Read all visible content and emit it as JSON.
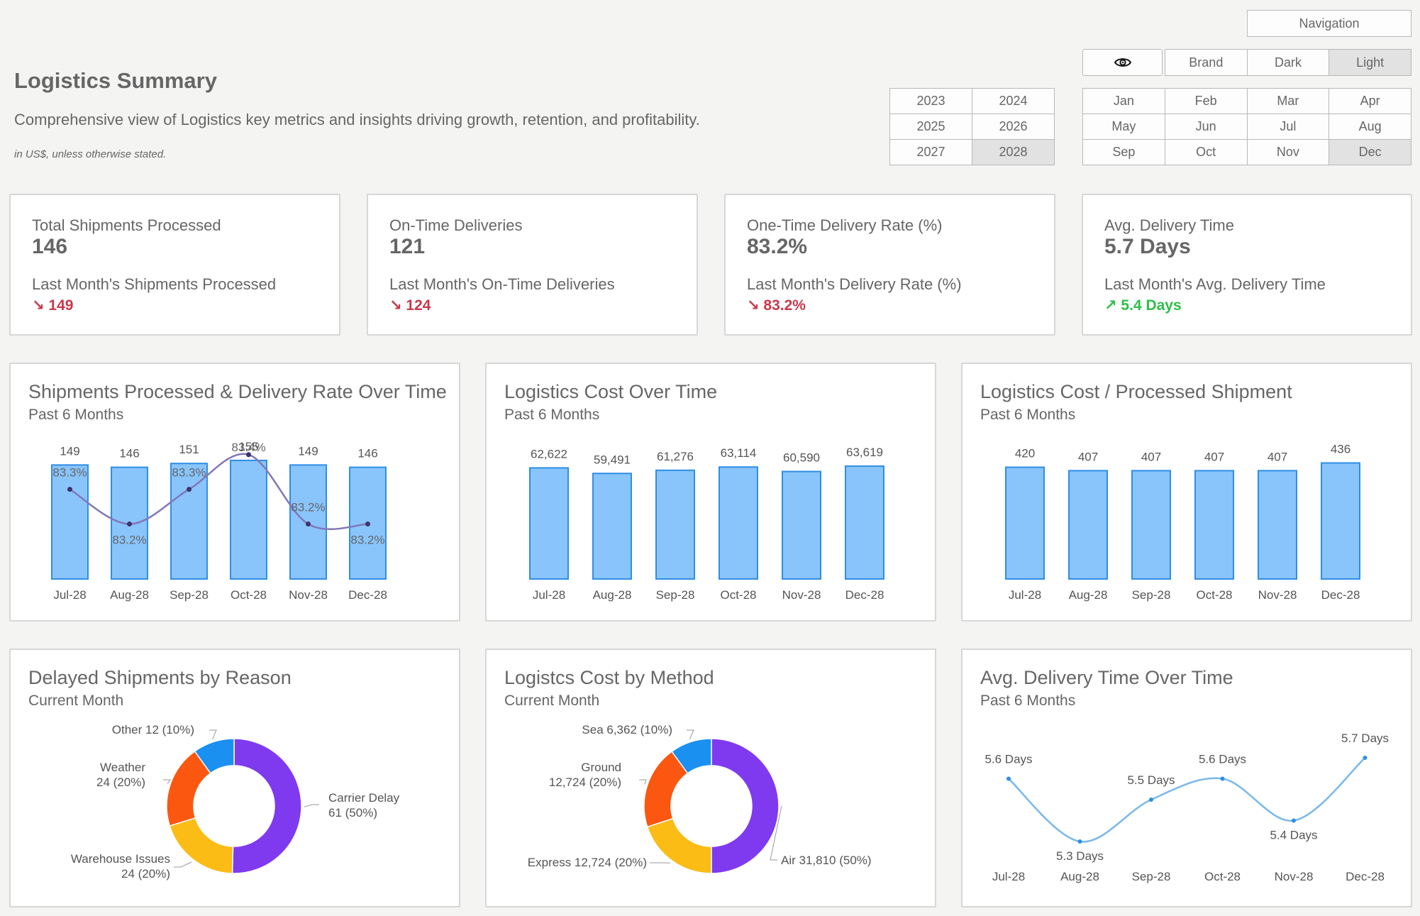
{
  "header": {
    "title": "Logistics Summary",
    "subtitle": "Comprehensive view of Logistics key metrics and insights driving growth, retention, and profitability.",
    "note": "in US$, unless otherwise stated."
  },
  "nav": {
    "navigation_label": "Navigation",
    "eye_icon": "eye-icon",
    "themes": [
      "Brand",
      "Dark",
      "Light"
    ],
    "selected_theme": "Light",
    "years": [
      "2023",
      "2024",
      "2025",
      "2026",
      "2027",
      "2028"
    ],
    "selected_year": "2028",
    "months": [
      "Jan",
      "Feb",
      "Mar",
      "Apr",
      "May",
      "Jun",
      "Jul",
      "Aug",
      "Sep",
      "Oct",
      "Nov",
      "Dec"
    ],
    "selected_month": "Dec"
  },
  "kpis": [
    {
      "label": "Total Shipments Processed",
      "value": "146",
      "prev_label": "Last Month's Shipments Processed",
      "prev_value": "↘ 149",
      "trend": "down"
    },
    {
      "label": "On-Time Deliveries",
      "value": "121",
      "prev_label": "Last Month's On-Time Deliveries",
      "prev_value": "↘ 124",
      "trend": "down"
    },
    {
      "label": "One-Time Delivery Rate (%)",
      "value": "83.2%",
      "prev_label": "Last Month's Delivery Rate (%)",
      "prev_value": "↘ 83.2%",
      "trend": "down"
    },
    {
      "label": "Avg. Delivery Time",
      "value": "5.7 Days",
      "prev_label": "Last Month's Avg. Delivery Time",
      "prev_value": "↗ 5.4 Days",
      "trend": "up"
    }
  ],
  "colors": {
    "bar_fill": "#89c4fb",
    "bar_stroke": "#2f8ee6",
    "line": "#8177b8",
    "line_light": "#79b8ec",
    "donut": [
      "#7f3af0",
      "#fbbc15",
      "#fb5710",
      "#1a90f0"
    ],
    "down": "#c8394c",
    "up": "#2fbf4a"
  },
  "charts": {
    "shipments": {
      "title": "Shipments Processed & Delivery Rate Over Time",
      "subtitle": "Past 6 Months"
    },
    "cost": {
      "title": "Logistics Cost Over Time",
      "subtitle": "Past 6 Months"
    },
    "cost_per": {
      "title": "Logistics Cost / Processed Shipment",
      "subtitle": "Past 6 Months"
    },
    "delayed": {
      "title": "Delayed Shipments by Reason",
      "subtitle": "Current Month"
    },
    "method": {
      "title": "Logistcs Cost by Method",
      "subtitle": "Current Month"
    },
    "avgtime": {
      "title": "Avg. Delivery Time Over Time",
      "subtitle": "Past 6 Months"
    }
  },
  "chart_data": [
    {
      "type": "bar",
      "id": "shipments",
      "categories": [
        "Jul-28",
        "Aug-28",
        "Sep-28",
        "Oct-28",
        "Nov-28",
        "Dec-28"
      ],
      "series": [
        {
          "name": "Shipments Processed",
          "type": "bar",
          "values": [
            149,
            146,
            151,
            155,
            149,
            146
          ],
          "labels": [
            "149",
            "146",
            "151",
            "155",
            "149",
            "146"
          ]
        },
        {
          "name": "Delivery Rate",
          "type": "line",
          "values": [
            83.3,
            83.2,
            83.3,
            83.4,
            83.2,
            83.2
          ],
          "labels": [
            "83.3%",
            "83.2%",
            "83.3%",
            "83.4%",
            "83.2%",
            "83.2%"
          ]
        }
      ]
    },
    {
      "type": "bar",
      "id": "cost",
      "categories": [
        "Jul-28",
        "Aug-28",
        "Sep-28",
        "Oct-28",
        "Nov-28",
        "Dec-28"
      ],
      "values": [
        62622,
        59491,
        61276,
        63114,
        60590,
        63619
      ],
      "labels": [
        "62,622",
        "59,491",
        "61,276",
        "63,114",
        "60,590",
        "63,619"
      ]
    },
    {
      "type": "bar",
      "id": "cost_per",
      "categories": [
        "Jul-28",
        "Aug-28",
        "Sep-28",
        "Oct-28",
        "Nov-28",
        "Dec-28"
      ],
      "values": [
        420,
        407,
        407,
        407,
        407,
        436
      ],
      "labels": [
        "420",
        "407",
        "407",
        "407",
        "407",
        "436"
      ]
    },
    {
      "type": "pie",
      "id": "delayed",
      "slices": [
        {
          "name": "Carrier Delay",
          "value": 61,
          "pct": 50,
          "label_lines": [
            "Carrier Delay",
            "61 (50%)"
          ]
        },
        {
          "name": "Warehouse Issues",
          "value": 24,
          "pct": 20,
          "label_lines": [
            "Warehouse Issues",
            "24 (20%)"
          ]
        },
        {
          "name": "Weather",
          "value": 24,
          "pct": 20,
          "label_lines": [
            "Weather",
            "24 (20%)"
          ]
        },
        {
          "name": "Other",
          "value": 12,
          "pct": 10,
          "label_lines": [
            "Other 12 (10%)"
          ]
        }
      ]
    },
    {
      "type": "pie",
      "id": "method",
      "slices": [
        {
          "name": "Air",
          "value": 31810,
          "pct": 50,
          "label_lines": [
            "Air 31,810 (50%)"
          ]
        },
        {
          "name": "Express",
          "value": 12724,
          "pct": 20,
          "label_lines": [
            "Express 12,724 (20%)"
          ]
        },
        {
          "name": "Ground",
          "value": 12724,
          "pct": 20,
          "label_lines": [
            "Ground",
            "12,724 (20%)"
          ]
        },
        {
          "name": "Sea",
          "value": 6362,
          "pct": 10,
          "label_lines": [
            "Sea 6,362 (10%)"
          ]
        }
      ]
    },
    {
      "type": "line",
      "id": "avgtime",
      "categories": [
        "Jul-28",
        "Aug-28",
        "Sep-28",
        "Oct-28",
        "Nov-28",
        "Dec-28"
      ],
      "values": [
        5.6,
        5.3,
        5.5,
        5.6,
        5.4,
        5.7
      ],
      "labels": [
        "5.6 Days",
        "5.3 Days",
        "5.5 Days",
        "5.6 Days",
        "5.4 Days",
        "5.7 Days"
      ]
    }
  ]
}
